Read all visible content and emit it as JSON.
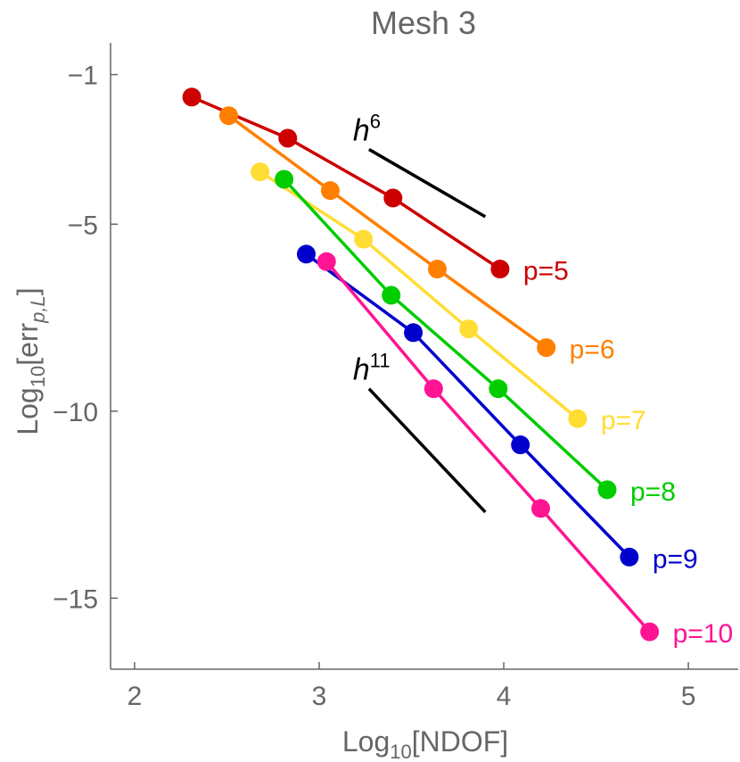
{
  "chart_data": {
    "type": "line",
    "title": "Mesh 3",
    "xlabel": {
      "prefix": "Log",
      "sub": "10",
      "suffix": "[NDOF]"
    },
    "ylabel": {
      "prefix": "Log",
      "sub": "10",
      "middle": "[err",
      "sub2": "p,L",
      "suffix": "]"
    },
    "xlim": [
      1.87,
      5.27
    ],
    "ylim": [
      -16.9,
      -0.15
    ],
    "xticks": [
      2,
      3,
      4,
      5
    ],
    "xtick_labels": [
      "2",
      "3",
      "4",
      "5"
    ],
    "yticks": [
      -1,
      -5,
      -10,
      -15
    ],
    "ytick_labels": [
      "−1",
      "−5",
      "−10",
      "−15"
    ],
    "series": [
      {
        "name": "p=5",
        "color": "#cc0000",
        "x": [
          2.31,
          2.83,
          3.4,
          3.98
        ],
        "y": [
          -1.6,
          -2.7,
          -4.3,
          -6.2
        ]
      },
      {
        "name": "p=6",
        "color": "#ff7f00",
        "x": [
          2.51,
          3.06,
          3.64,
          4.23
        ],
        "y": [
          -2.1,
          -4.1,
          -6.2,
          -8.3
        ]
      },
      {
        "name": "p=7",
        "color": "#ffdd33",
        "x": [
          2.68,
          3.24,
          3.81,
          4.4
        ],
        "y": [
          -3.6,
          -5.4,
          -7.8,
          -10.2
        ]
      },
      {
        "name": "p=8",
        "color": "#00cc00",
        "x": [
          2.81,
          3.39,
          3.97,
          4.56
        ],
        "y": [
          -3.8,
          -6.9,
          -9.4,
          -12.1
        ]
      },
      {
        "name": "p=9",
        "color": "#0000cc",
        "x": [
          2.93,
          3.51,
          4.09,
          4.68
        ],
        "y": [
          -5.8,
          -7.9,
          -10.9,
          -13.9
        ]
      },
      {
        "name": "p=10",
        "color": "#ff1493",
        "x": [
          3.04,
          3.62,
          4.2,
          4.79
        ],
        "y": [
          -6.0,
          -9.4,
          -12.6,
          -15.9
        ]
      }
    ],
    "slope_markers": [
      {
        "label": "h",
        "exponent": "6",
        "x": [
          3.27,
          3.9
        ],
        "y": [
          -3.0,
          -4.8
        ]
      },
      {
        "label": "h",
        "exponent": "11",
        "x": [
          3.27,
          3.9
        ],
        "y": [
          -9.4,
          -12.7
        ]
      }
    ]
  }
}
